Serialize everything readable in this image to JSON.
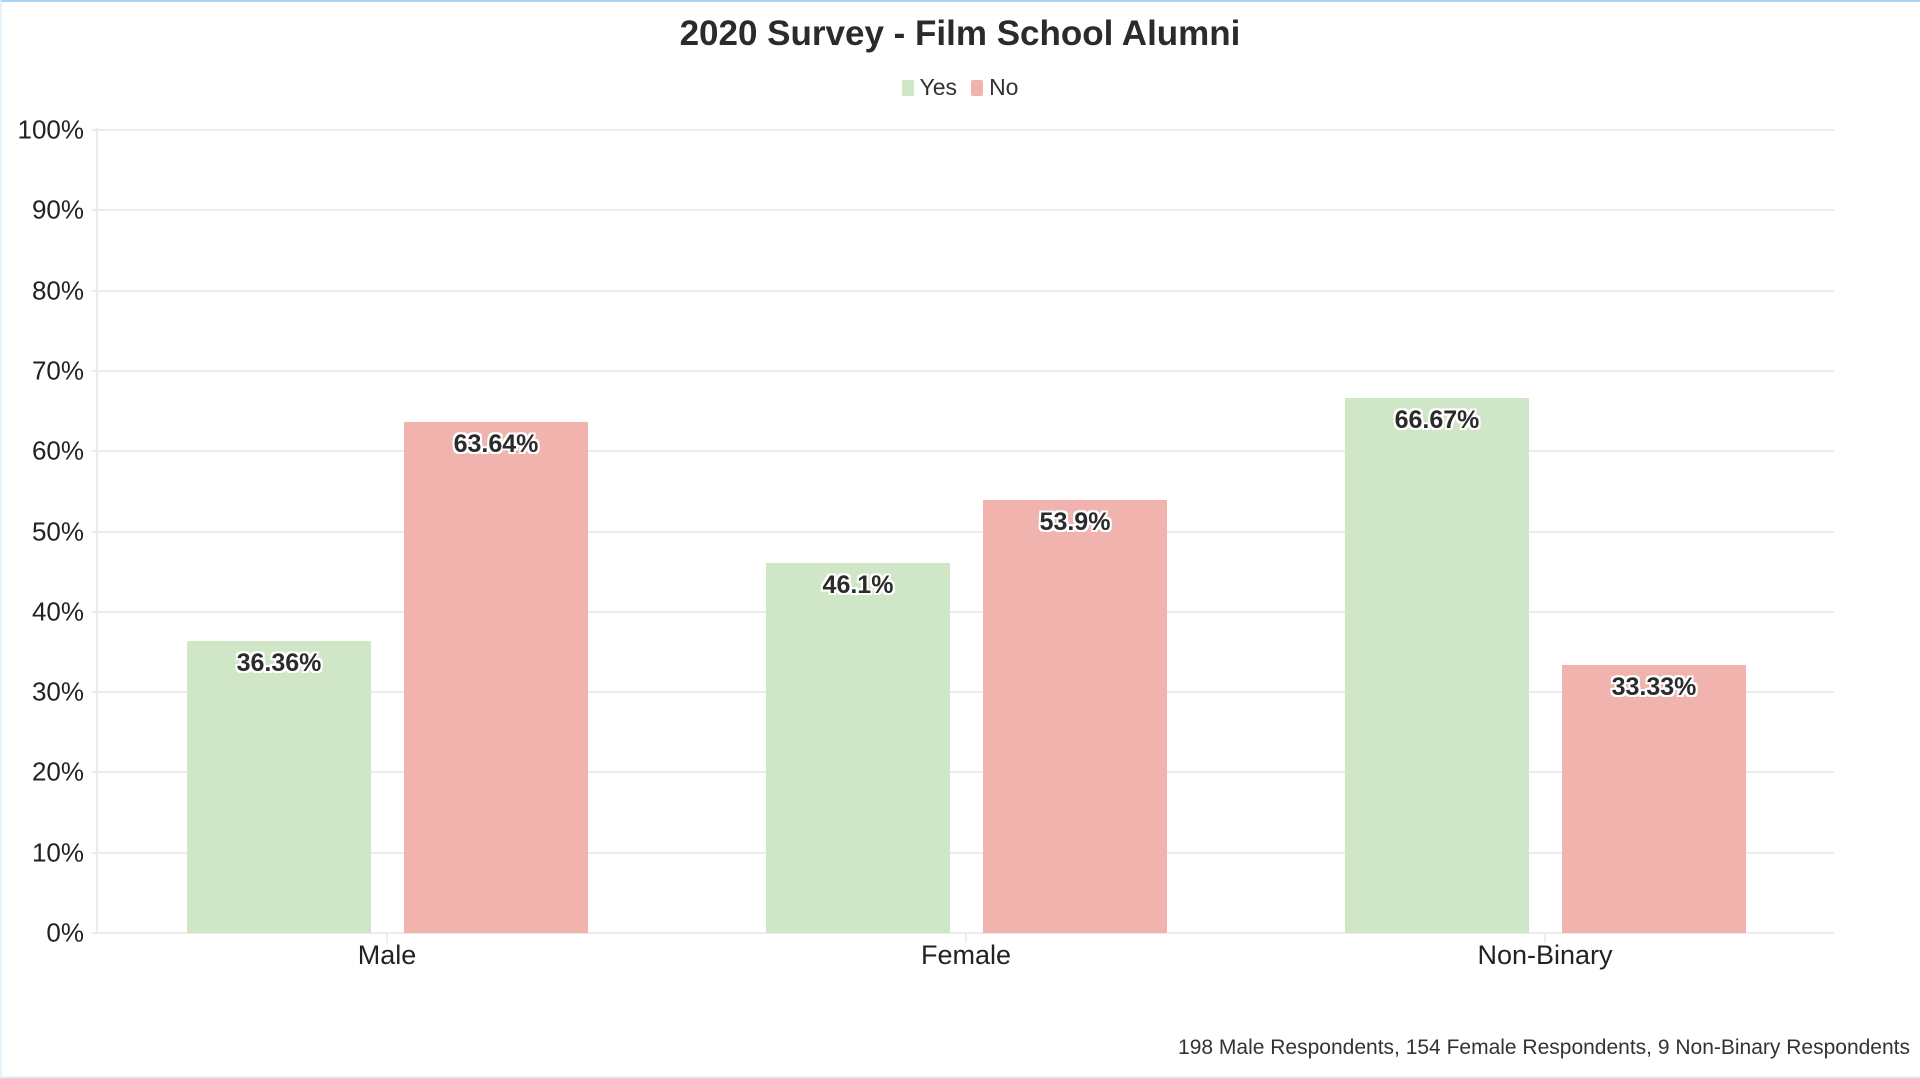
{
  "chart_data": {
    "type": "bar",
    "title": "2020 Survey - Film School Alumni",
    "categories": [
      "Male",
      "Female",
      "Non-Binary"
    ],
    "series": [
      {
        "name": "Yes",
        "color": "#d0e7c7",
        "values": [
          36.36,
          46.1,
          66.67
        ],
        "labels": [
          "36.36%",
          "46.1%",
          "66.67%"
        ]
      },
      {
        "name": "No",
        "color": "#f0b3ae",
        "values": [
          63.64,
          53.9,
          33.33
        ],
        "labels": [
          "63.64%",
          "53.9%",
          "33.33%"
        ]
      }
    ],
    "xlabel": "",
    "ylabel": "",
    "ylim": [
      0,
      100
    ],
    "yticks": [
      "0%",
      "10%",
      "20%",
      "30%",
      "40%",
      "50%",
      "60%",
      "70%",
      "80%",
      "90%",
      "100%"
    ],
    "grid": true,
    "legend_position": "top",
    "footnote": "198 Male Respondents, 154 Female Respondents, 9 Non-Binary Respondents"
  },
  "title": "2020 Survey - Film School Alumni",
  "legend": [
    {
      "label": "Yes",
      "color": "#d0e7c7"
    },
    {
      "label": "No",
      "color": "#f0b3ae"
    }
  ],
  "footnote": "198 Male Respondents, 154 Female Respondents, 9 Non-Binary Respondents"
}
